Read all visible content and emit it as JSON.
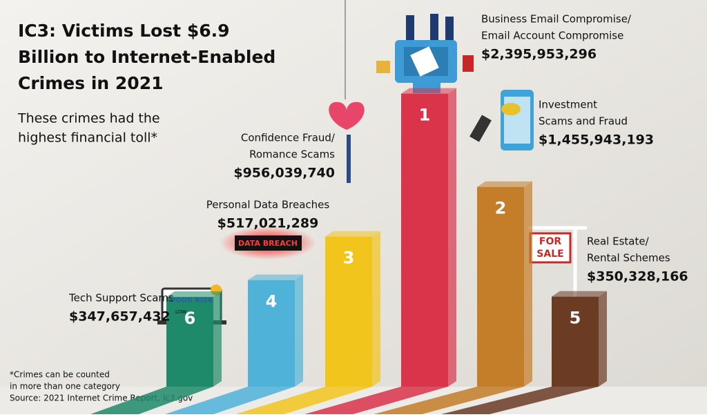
{
  "chart_data": {
    "type": "bar",
    "title": [
      "IC3: Victims Lost $6.9",
      "Billion to Internet-Enabled",
      "Crimes in 2021"
    ],
    "subtitle": [
      "These crimes had the",
      "highest financial toll*"
    ],
    "footnote": [
      "*Crimes can be counted",
      "in more than one category",
      "Source: 2021 Internet Crime Report, ic3.gov"
    ],
    "categories": [
      [
        "Tech Support Scams"
      ],
      [
        "Personal Data Breaches"
      ],
      [
        "Confidence Fraud/",
        "Romance Scams"
      ],
      [
        "Business Email Compromise/",
        "Email Account Compromise"
      ],
      [
        "Investment",
        "Scams and Fraud"
      ],
      [
        "Real Estate/",
        "Rental Schemes"
      ]
    ],
    "values": [
      347657432,
      517021289,
      956039740,
      2395953296,
      1455943193,
      350328166
    ],
    "value_labels": [
      "$347,657,432",
      "$517,021,289",
      "$956,039,740",
      "$2,395,953,296",
      "$1,455,943,193",
      "$350,328,166"
    ],
    "ranks": [
      6,
      4,
      3,
      1,
      2,
      5
    ],
    "colors": [
      "#1f8a6a",
      "#4fb3d9",
      "#f2c51d",
      "#d9344a",
      "#c47d28",
      "#6b3b24"
    ]
  },
  "illustration_text": {
    "data_breach_sign": "DATA BREACH",
    "risk_meter": "YOUR RISK",
    "risk_level": "LOW",
    "sale_sign": [
      "FOR",
      "SALE"
    ]
  }
}
